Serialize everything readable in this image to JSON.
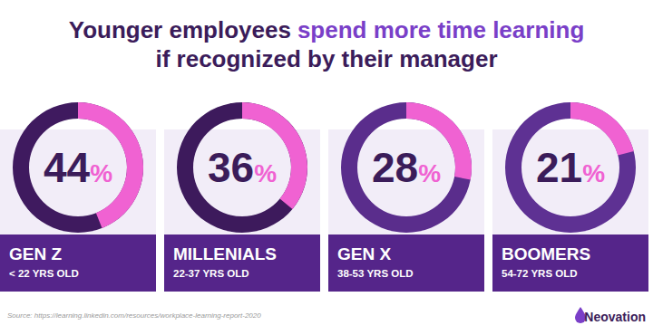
{
  "title": [
    "Younger employees",
    "spend more time learning",
    "if recognized by their manager"
  ],
  "chart_data": [
    {
      "type": "pie",
      "title": "GEN Z",
      "subtitle": "< 22 YRS OLD",
      "values": [
        44
      ],
      "value_labels": [
        "44%"
      ],
      "color": "#f062d2",
      "ylim": [
        0,
        100
      ],
      "data_labels": true
    },
    {
      "type": "pie",
      "title": "MILLENIALS",
      "subtitle": "22-37 YRS OLD",
      "values": [
        36
      ],
      "value_labels": [
        "36%"
      ],
      "color": "#f062d2",
      "ylim": [
        0,
        100
      ],
      "data_labels": true
    },
    {
      "type": "pie",
      "title": "GEN X",
      "subtitle": "38-53 YRS OLD",
      "values": [
        28
      ],
      "value_labels": [
        "28%"
      ],
      "color": "#f062d2",
      "ylim": [
        0,
        100
      ],
      "data_labels": true
    },
    {
      "type": "pie",
      "title": "BOOMERS",
      "subtitle": "54-72 YRS OLD",
      "values": [
        21
      ],
      "value_labels": [
        "21%"
      ],
      "color": "#f062d2",
      "ylim": [
        0,
        100
      ],
      "data_labels": true
    }
  ],
  "source": "Source: https://learning.linkedin.com/resources/workplace-learning-report-2020",
  "logo": "Neovation"
}
